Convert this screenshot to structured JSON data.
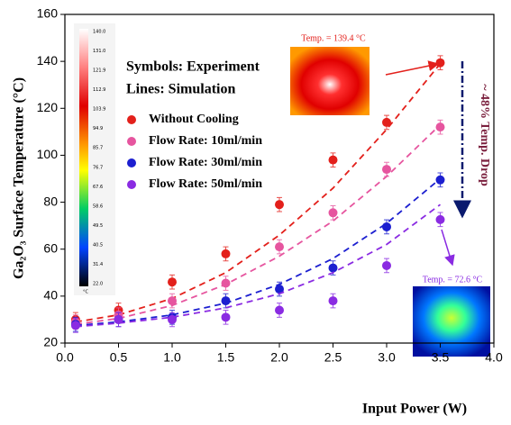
{
  "chart_data": {
    "type": "scatter",
    "xlabel": "Input Power (W)",
    "ylabel": "Ga₂O₃ Surface Temperature (°C)",
    "xlim": [
      0,
      4
    ],
    "ylim": [
      20,
      160
    ],
    "xticks": [
      {
        "value": 0,
        "label": "0.0"
      },
      {
        "value": 0.5,
        "label": "0.5"
      },
      {
        "value": 1,
        "label": "1.0"
      },
      {
        "value": 1.5,
        "label": "1.5"
      },
      {
        "value": 2,
        "label": "2.0"
      },
      {
        "value": 2.5,
        "label": "2.5"
      },
      {
        "value": 3,
        "label": "3.0"
      },
      {
        "value": 3.5,
        "label": "3.5"
      },
      {
        "value": 4,
        "label": "4.0"
      }
    ],
    "yticks": [
      20,
      40,
      60,
      80,
      100,
      120,
      140,
      160
    ],
    "x": [
      0.1,
      0.5,
      1.0,
      1.5,
      2.0,
      2.5,
      3.0,
      3.5
    ],
    "series": [
      {
        "name": "Without Cooling",
        "color": "#e3201b",
        "values": [
          30,
          34,
          46,
          58,
          79,
          98,
          114,
          139.4
        ],
        "errors": [
          3,
          3,
          3,
          3,
          3,
          3,
          3,
          3
        ],
        "simulation": [
          29,
          32,
          39,
          50,
          66,
          86,
          111,
          139
        ]
      },
      {
        "name": "Flow Rate: 10ml/min",
        "color": "#e6559f",
        "values": [
          29,
          32,
          38,
          45.5,
          61,
          75.5,
          94,
          112
        ],
        "errors": [
          3,
          3,
          3,
          3,
          3,
          3,
          3,
          3
        ],
        "simulation": [
          28,
          30.5,
          36,
          45,
          57,
          72,
          91,
          113
        ]
      },
      {
        "name": "Flow Rate: 30ml/min",
        "color": "#1c1fd0",
        "values": [
          28,
          30,
          31,
          38,
          43,
          52,
          69.5,
          89.5
        ],
        "errors": [
          3,
          3,
          3,
          3,
          3,
          3,
          3,
          3
        ],
        "simulation": [
          27.5,
          29,
          32,
          37,
          45,
          56,
          71,
          90
        ]
      },
      {
        "name": "Flow Rate: 50ml/min",
        "color": "#8a2be2",
        "values": [
          27.5,
          30,
          30,
          31,
          34,
          38,
          53,
          72.6
        ],
        "errors": [
          3,
          3,
          3,
          3,
          3,
          3,
          3,
          3
        ],
        "simulation": [
          27,
          28.5,
          31,
          35,
          41,
          50,
          62,
          79
        ]
      }
    ],
    "annotations": {
      "symbols": "Symbols: Experiment",
      "lines": "Lines: Simulation",
      "hot": "Temp. = 139.4 °C",
      "cool": "Temp. = 72.6 °C",
      "drop": "~ 48% Temp. Drop"
    },
    "colorbar_labels": [
      "140.0",
      "131.0",
      "121.9",
      "112.9",
      "103.9",
      "94.9",
      "85.7",
      "76.7",
      "67.6",
      "58.6",
      "49.5",
      "40.5",
      "31.4",
      "22.0"
    ],
    "colorbar_unit": "°C"
  }
}
